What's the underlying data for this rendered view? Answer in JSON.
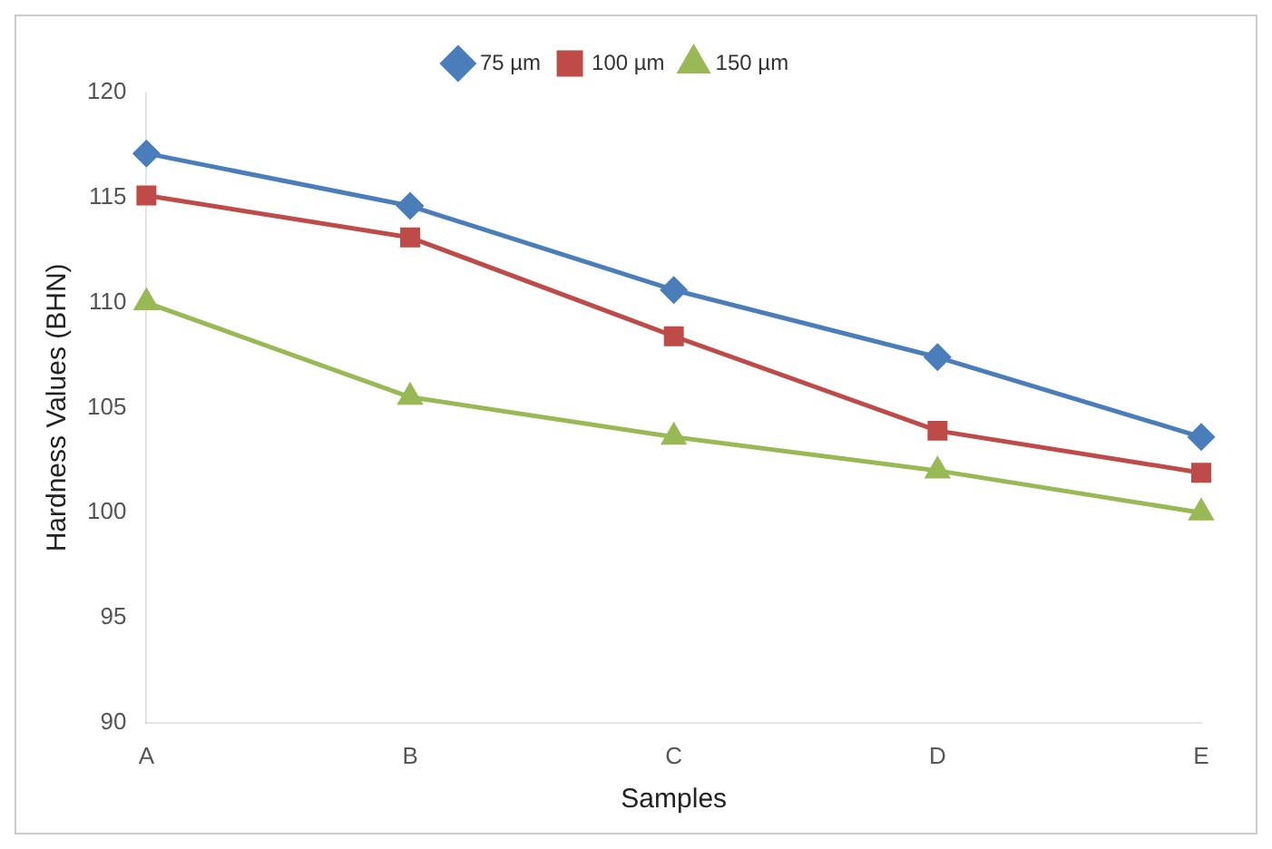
{
  "chart_data": {
    "type": "line",
    "xlabel": "Samples",
    "ylabel": "Hardness Values (BHN)",
    "categories": [
      "A",
      "B",
      "C",
      "D",
      "E"
    ],
    "series": [
      {
        "name": "75 µm",
        "color": "#4a7ebb",
        "marker": "diamond",
        "values": [
          117.1,
          114.6,
          110.6,
          107.4,
          103.6
        ]
      },
      {
        "name": "100 µm",
        "color": "#be4b48",
        "marker": "square",
        "values": [
          115.1,
          113.1,
          108.4,
          103.9,
          101.9
        ]
      },
      {
        "name": "150 µm",
        "color": "#98b954",
        "marker": "triangle",
        "values": [
          110,
          105.5,
          103.6,
          102,
          100
        ]
      }
    ],
    "ylim": [
      90,
      120
    ],
    "yticks": [
      90,
      95,
      100,
      105,
      110,
      115,
      120
    ],
    "grid": false,
    "legend": "top"
  }
}
